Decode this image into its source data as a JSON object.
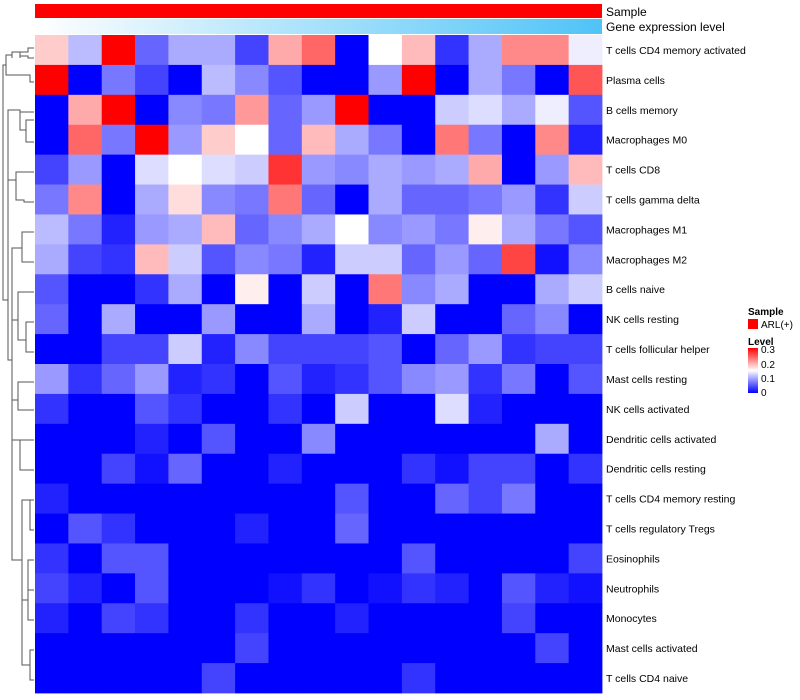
{
  "chart_data": {
    "type": "heatmap",
    "title": "",
    "annotation_tracks": [
      {
        "name": "Sample",
        "color": "#FF0000"
      },
      {
        "name": "Gene expression level",
        "gradient": [
          "#FFFFFF",
          "#4FC3F7"
        ]
      }
    ],
    "columns_count": 17,
    "rows": [
      "T cells CD4 memory activated",
      "Plasma cells",
      "B cells memory",
      "Macrophages M0",
      "T cells CD8",
      "T cells gamma delta",
      "Macrophages M1",
      "Macrophages M2",
      "B cells naive",
      "NK cells resting",
      "T cells follicular helper",
      "Mast cells resting",
      "NK cells activated",
      "Dendritic cells activated",
      "Dendritic cells resting",
      "T cells CD4 memory resting",
      "T cells regulatory  Tregs",
      "Eosinophils",
      "Neutrophils",
      "Monocytes",
      "Mast cells activated",
      "T cells CD4 naive"
    ],
    "values": [
      [
        0.18,
        0.11,
        0.3,
        0.06,
        0.1,
        0.1,
        0.04,
        0.2,
        0.24,
        0.0,
        0.15,
        0.19,
        0.03,
        0.1,
        0.22,
        0.22,
        0.14
      ],
      [
        0.3,
        0.0,
        0.07,
        0.04,
        0.0,
        0.11,
        0.08,
        0.05,
        0.0,
        0.0,
        0.09,
        0.3,
        0.0,
        0.1,
        0.07,
        0.0,
        0.25
      ],
      [
        0.0,
        0.2,
        0.3,
        0.0,
        0.08,
        0.07,
        0.21,
        0.06,
        0.09,
        0.3,
        0.0,
        0.0,
        0.12,
        0.13,
        0.1,
        0.14,
        0.05
      ],
      [
        0.0,
        0.24,
        0.07,
        0.3,
        0.09,
        0.18,
        0.15,
        0.06,
        0.19,
        0.1,
        0.07,
        0.0,
        0.23,
        0.07,
        0.0,
        0.22,
        0.02
      ],
      [
        0.04,
        0.09,
        0.0,
        0.13,
        0.15,
        0.13,
        0.12,
        0.27,
        0.09,
        0.08,
        0.1,
        0.09,
        0.1,
        0.2,
        0.0,
        0.09,
        0.19
      ],
      [
        0.07,
        0.22,
        0.0,
        0.1,
        0.17,
        0.08,
        0.07,
        0.23,
        0.06,
        0.0,
        0.1,
        0.06,
        0.06,
        0.07,
        0.09,
        0.03,
        0.12
      ],
      [
        0.11,
        0.07,
        0.02,
        0.09,
        0.1,
        0.19,
        0.06,
        0.08,
        0.1,
        0.15,
        0.08,
        0.09,
        0.07,
        0.16,
        0.1,
        0.07,
        0.05
      ],
      [
        0.1,
        0.04,
        0.03,
        0.19,
        0.12,
        0.05,
        0.08,
        0.07,
        0.02,
        0.12,
        0.12,
        0.06,
        0.09,
        0.06,
        0.26,
        0.01,
        0.08
      ],
      [
        0.05,
        0.0,
        0.0,
        0.03,
        0.1,
        0.0,
        0.16,
        0.0,
        0.12,
        0.0,
        0.23,
        0.08,
        0.1,
        0.0,
        0.0,
        0.1,
        0.12
      ],
      [
        0.06,
        0.0,
        0.1,
        0.0,
        0.0,
        0.09,
        0.0,
        0.0,
        0.1,
        0.0,
        0.02,
        0.12,
        0.0,
        0.0,
        0.06,
        0.08,
        0.0
      ],
      [
        0.0,
        0.0,
        0.04,
        0.04,
        0.12,
        0.02,
        0.08,
        0.04,
        0.04,
        0.04,
        0.05,
        0.0,
        0.06,
        0.09,
        0.03,
        0.04,
        0.04
      ],
      [
        0.09,
        0.03,
        0.06,
        0.09,
        0.02,
        0.03,
        0.0,
        0.05,
        0.02,
        0.03,
        0.05,
        0.08,
        0.09,
        0.03,
        0.07,
        0.0,
        0.05
      ],
      [
        0.03,
        0.0,
        0.0,
        0.05,
        0.03,
        0.0,
        0.0,
        0.03,
        0.0,
        0.12,
        0.0,
        0.0,
        0.13,
        0.02,
        0.0,
        0.0,
        0.0
      ],
      [
        0.0,
        0.0,
        0.0,
        0.02,
        0.0,
        0.05,
        0.0,
        0.0,
        0.08,
        0.0,
        0.0,
        0.0,
        0.0,
        0.0,
        0.0,
        0.1,
        0.0
      ],
      [
        0.0,
        0.0,
        0.04,
        0.01,
        0.06,
        0.0,
        0.0,
        0.02,
        0.0,
        0.0,
        0.0,
        0.03,
        0.01,
        0.04,
        0.04,
        0.0,
        0.03
      ],
      [
        0.02,
        0.0,
        0.0,
        0.0,
        0.0,
        0.0,
        0.0,
        0.0,
        0.0,
        0.05,
        0.0,
        0.0,
        0.06,
        0.04,
        0.07,
        0.0,
        0.0
      ],
      [
        0.0,
        0.05,
        0.03,
        0.0,
        0.0,
        0.0,
        0.02,
        0.0,
        0.0,
        0.06,
        0.0,
        0.0,
        0.0,
        0.0,
        0.0,
        0.0,
        0.0
      ],
      [
        0.03,
        0.0,
        0.05,
        0.05,
        0.0,
        0.0,
        0.0,
        0.0,
        0.0,
        0.0,
        0.0,
        0.05,
        0.0,
        0.0,
        0.0,
        0.0,
        0.04
      ],
      [
        0.04,
        0.02,
        0.0,
        0.05,
        0.0,
        0.0,
        0.0,
        0.01,
        0.03,
        0.0,
        0.01,
        0.03,
        0.02,
        0.0,
        0.05,
        0.02,
        0.01
      ],
      [
        0.02,
        0.0,
        0.04,
        0.03,
        0.0,
        0.0,
        0.03,
        0.0,
        0.0,
        0.02,
        0.0,
        0.0,
        0.0,
        0.0,
        0.04,
        0.0,
        0.0
      ],
      [
        0.0,
        0.0,
        0.0,
        0.0,
        0.0,
        0.0,
        0.04,
        0.0,
        0.0,
        0.0,
        0.0,
        0.0,
        0.0,
        0.0,
        0.0,
        0.04,
        0.0
      ],
      [
        0.0,
        0.0,
        0.0,
        0.0,
        0.0,
        0.04,
        0.0,
        0.0,
        0.0,
        0.0,
        0.0,
        0.03,
        0.0,
        0.0,
        0.0,
        0.0,
        0.0
      ]
    ],
    "color_scale": {
      "min": 0,
      "mid": 0.15,
      "max": 0.3,
      "low_color": "#0000FF",
      "mid_color": "#FFFFFF",
      "high_color": "#FF0000"
    },
    "legend": {
      "sample_title": "Sample",
      "sample_label": "ARL(+)",
      "sample_color": "#FF0000",
      "level_title": "Level",
      "level_ticks": [
        "0.3",
        "0.2",
        "0.1",
        "0"
      ]
    }
  }
}
